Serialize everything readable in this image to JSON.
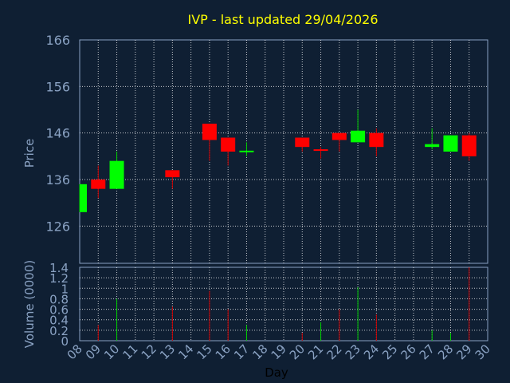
{
  "colors": {
    "background": "#0f1f33",
    "title": "#ffff00",
    "axis_text": "#8aa2c3",
    "grid": "#ffffff",
    "up": "#00ff00",
    "down": "#ff0000",
    "up_wick": "#00cc00",
    "down_wick": "#cc0000"
  },
  "chart_data": {
    "type": "candlestick",
    "title": "IVP - last updated 29/04/2026",
    "xlabel": "Day",
    "price_axis": {
      "label": "Price",
      "ylim": [
        118,
        166
      ],
      "ticks": [
        "166",
        "156",
        "146",
        "136",
        "126"
      ],
      "tick_values": [
        166,
        156,
        146,
        136,
        126
      ]
    },
    "volume_axis": {
      "label": "Volume (0000)",
      "ylim": [
        0,
        1.4
      ],
      "ticks": [
        "1.4",
        "1.2",
        "1",
        "0.8",
        "0.6",
        "0.4",
        "0.2",
        "0"
      ],
      "tick_values": [
        1.4,
        1.2,
        1.0,
        0.8,
        0.6,
        0.4,
        0.2,
        0
      ]
    },
    "x_ticks": [
      "08",
      "09",
      "10",
      "11",
      "12",
      "13",
      "14",
      "15",
      "16",
      "17",
      "18",
      "19",
      "20",
      "21",
      "22",
      "23",
      "24",
      "25",
      "26",
      "27",
      "28",
      "29",
      "30"
    ],
    "grid": true,
    "candles": [
      {
        "day": 8,
        "open": 129.0,
        "close": 135.0,
        "high": 135.0,
        "low": 129.0
      },
      {
        "day": 9,
        "open": 136.0,
        "close": 134.0,
        "high": 139.0,
        "low": 132.0
      },
      {
        "day": 10,
        "open": 134.0,
        "close": 140.0,
        "high": 142.0,
        "low": 134.0
      },
      {
        "day": 13,
        "open": 138.0,
        "close": 136.5,
        "high": 138.0,
        "low": 134.0
      },
      {
        "day": 15,
        "open": 148.0,
        "close": 144.5,
        "high": 148.0,
        "low": 140.0
      },
      {
        "day": 16,
        "open": 145.0,
        "close": 142.0,
        "high": 145.0,
        "low": 139.0
      },
      {
        "day": 17,
        "open": 142.0,
        "close": 142.2,
        "high": 144.0,
        "low": 141.0
      },
      {
        "day": 20,
        "open": 145.0,
        "close": 143.0,
        "high": 145.0,
        "low": 142.0
      },
      {
        "day": 21,
        "open": 142.5,
        "close": 142.3,
        "high": 143.0,
        "low": 140.5
      },
      {
        "day": 22,
        "open": 146.0,
        "close": 144.5,
        "high": 146.0,
        "low": 142.0
      },
      {
        "day": 23,
        "open": 144.0,
        "close": 146.5,
        "high": 151.0,
        "low": 144.0
      },
      {
        "day": 24,
        "open": 146.0,
        "close": 143.0,
        "high": 147.0,
        "low": 141.0
      },
      {
        "day": 27,
        "open": 143.0,
        "close": 143.6,
        "high": 147.0,
        "low": 142.5
      },
      {
        "day": 28,
        "open": 142.0,
        "close": 145.5,
        "high": 145.5,
        "low": 142.0
      },
      {
        "day": 29,
        "open": 145.5,
        "close": 141.0,
        "high": 146.0,
        "low": 140.0
      }
    ],
    "volume": [
      {
        "day": 8,
        "value": 0.0,
        "up": true
      },
      {
        "day": 9,
        "value": 0.3,
        "up": false
      },
      {
        "day": 10,
        "value": 0.8,
        "up": true
      },
      {
        "day": 13,
        "value": 0.65,
        "up": false
      },
      {
        "day": 15,
        "value": 0.95,
        "up": false
      },
      {
        "day": 16,
        "value": 0.6,
        "up": false
      },
      {
        "day": 17,
        "value": 0.3,
        "up": true
      },
      {
        "day": 20,
        "value": 0.15,
        "up": false
      },
      {
        "day": 21,
        "value": 0.35,
        "up": true
      },
      {
        "day": 22,
        "value": 0.6,
        "up": false
      },
      {
        "day": 23,
        "value": 1.02,
        "up": true
      },
      {
        "day": 24,
        "value": 0.5,
        "up": false
      },
      {
        "day": 27,
        "value": 0.2,
        "up": true
      },
      {
        "day": 28,
        "value": 0.15,
        "up": true
      },
      {
        "day": 29,
        "value": 1.4,
        "up": false
      }
    ]
  }
}
